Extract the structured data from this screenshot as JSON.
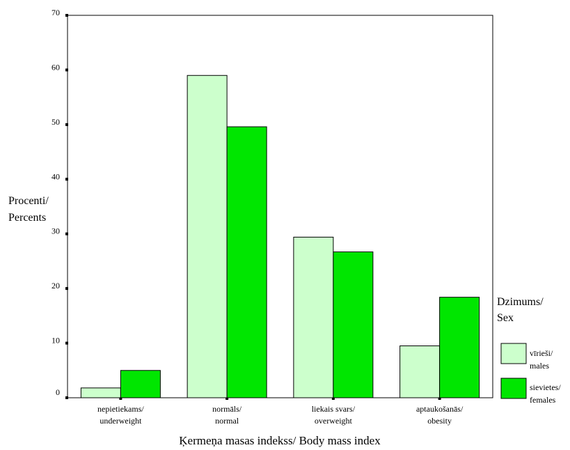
{
  "chart_data": {
    "type": "bar",
    "categories": [
      [
        "nepietiekams/",
        "underweight"
      ],
      [
        "normāls/",
        "normal"
      ],
      [
        "liekais svars/",
        "overweight"
      ],
      [
        "aptaukošanās/",
        "obesity"
      ]
    ],
    "series": [
      {
        "name": [
          "vīrieši/",
          "males"
        ],
        "values": [
          1.8,
          59.0,
          29.4,
          9.5
        ],
        "color": "#ccffcc"
      },
      {
        "name": [
          "sievietes/",
          "females"
        ],
        "values": [
          5.0,
          49.6,
          26.7,
          18.4
        ],
        "color": "#00e600"
      }
    ],
    "ylabel": [
      "Procenti/",
      "Percents"
    ],
    "xlabel": "Ķermeņa masas indekss/ Body mass index",
    "ylim": [
      0,
      70
    ],
    "yticks": [
      0,
      10,
      20,
      30,
      40,
      50,
      60,
      70
    ],
    "legend_title": [
      "Dzimums/",
      "Sex"
    ],
    "legend_position": "right",
    "grid": false
  }
}
